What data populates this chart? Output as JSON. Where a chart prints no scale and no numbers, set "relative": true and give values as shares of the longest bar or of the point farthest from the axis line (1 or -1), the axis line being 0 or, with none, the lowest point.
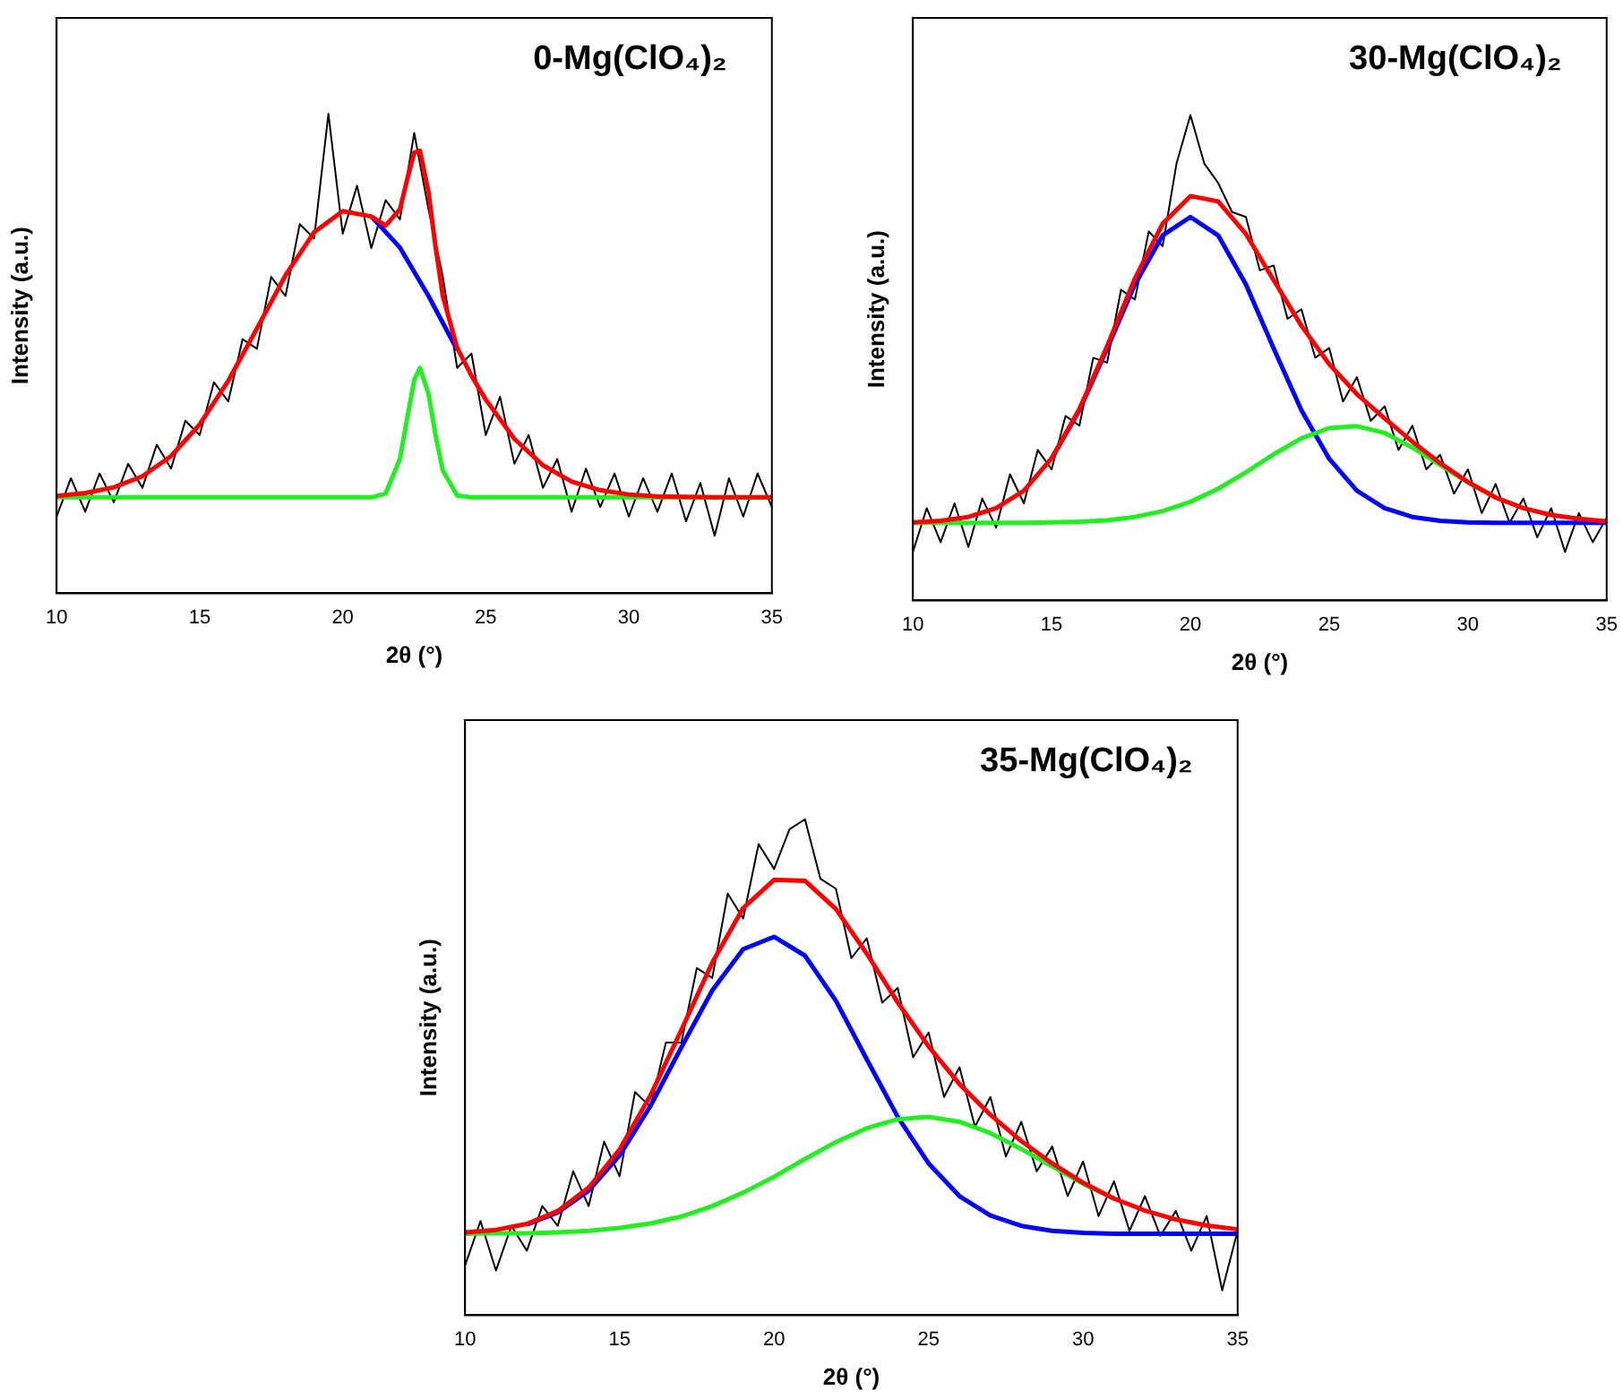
{
  "chart_data": [
    {
      "type": "line",
      "title": "0-Mg(ClO₄)₂",
      "xlabel": "2θ (°)",
      "ylabel": "Intensity (a.u.)",
      "relative": true,
      "xlim": [
        10,
        35
      ],
      "xticks": [
        10,
        15,
        20,
        25,
        30,
        35
      ],
      "x": [
        10,
        10.5,
        11,
        11.5,
        12,
        12.5,
        13,
        13.5,
        14,
        14.5,
        15,
        15.5,
        16,
        16.5,
        17,
        17.5,
        18,
        18.5,
        19,
        19.5,
        20,
        20.5,
        21,
        21.5,
        22,
        22.5,
        23,
        23.5,
        24,
        24.5,
        25,
        25.5,
        26,
        26.5,
        27,
        27.5,
        28,
        28.5,
        29,
        29.5,
        30,
        30.5,
        31,
        31.5,
        32,
        32.5,
        33,
        33.5,
        34,
        34.5,
        35
      ],
      "series": [
        {
          "color": "#000000",
          "values": [
            0.16,
            0.24,
            0.17,
            0.25,
            0.19,
            0.27,
            0.22,
            0.31,
            0.26,
            0.36,
            0.33,
            0.44,
            0.4,
            0.53,
            0.51,
            0.66,
            0.62,
            0.77,
            0.74,
            1.0,
            0.75,
            0.85,
            0.72,
            0.82,
            0.78,
            0.96,
            0.8,
            0.66,
            0.47,
            0.5,
            0.33,
            0.41,
            0.27,
            0.33,
            0.22,
            0.28,
            0.17,
            0.26,
            0.18,
            0.25,
            0.16,
            0.24,
            0.17,
            0.25,
            0.15,
            0.23,
            0.12,
            0.24,
            0.16,
            0.25,
            0.18
          ]
        },
        {
          "color": "#0000ff",
          "x": [
            21,
            22,
            23,
            24
          ],
          "values": [
            0.786,
            0.721,
            0.62,
            0.508
          ]
        },
        {
          "color": "#22ee22",
          "x": [
            10,
            15,
            20,
            21,
            21.5,
            22,
            22.25,
            22.5,
            22.7,
            23,
            23.25,
            23.5,
            24,
            24.5,
            30,
            35
          ],
          "values": [
            0.2,
            0.2,
            0.2,
            0.2,
            0.208,
            0.28,
            0.364,
            0.445,
            0.47,
            0.416,
            0.328,
            0.256,
            0.204,
            0.2,
            0.2,
            0.2
          ]
        },
        {
          "color": "#ff0000",
          "x": [
            10,
            11,
            12,
            13,
            14,
            15,
            16,
            17,
            18,
            19,
            20,
            21,
            21.5,
            22,
            22.25,
            22.5,
            22.7,
            23,
            23.25,
            23.5,
            24,
            24.5,
            25,
            26,
            27,
            28,
            29,
            30,
            31,
            32,
            33,
            34,
            35
          ],
          "values": [
            0.203,
            0.209,
            0.221,
            0.244,
            0.286,
            0.352,
            0.443,
            0.552,
            0.663,
            0.753,
            0.797,
            0.786,
            0.767,
            0.801,
            0.862,
            0.919,
            0.923,
            0.836,
            0.72,
            0.62,
            0.512,
            0.454,
            0.404,
            0.322,
            0.267,
            0.233,
            0.215,
            0.206,
            0.202,
            0.201,
            0.2,
            0.2,
            0.2
          ]
        }
      ]
    },
    {
      "type": "line",
      "title": "30-Mg(ClO₄)₂",
      "xlabel": "2θ (°)",
      "ylabel": "Intensity (a.u.)",
      "relative": true,
      "xlim": [
        10,
        35
      ],
      "xticks": [
        10,
        15,
        20,
        25,
        30,
        35
      ],
      "x": [
        10,
        10.5,
        11,
        11.5,
        12,
        12.5,
        13,
        13.5,
        14,
        14.5,
        15,
        15.5,
        16,
        16.5,
        17,
        17.5,
        18,
        18.5,
        19,
        19.5,
        20,
        20.5,
        21,
        21.5,
        22,
        22.5,
        23,
        23.5,
        24,
        24.5,
        25,
        25.5,
        26,
        26.5,
        27,
        27.5,
        28,
        28.5,
        29,
        29.5,
        30,
        30.5,
        31,
        31.5,
        32,
        32.5,
        33,
        33.5,
        34,
        34.5,
        35
      ],
      "series": [
        {
          "color": "#000000",
          "values": [
            0.1,
            0.19,
            0.12,
            0.2,
            0.11,
            0.21,
            0.15,
            0.26,
            0.2,
            0.31,
            0.27,
            0.38,
            0.36,
            0.5,
            0.49,
            0.64,
            0.62,
            0.76,
            0.73,
            0.9,
            1.0,
            0.9,
            0.86,
            0.8,
            0.79,
            0.68,
            0.69,
            0.58,
            0.6,
            0.5,
            0.52,
            0.41,
            0.46,
            0.37,
            0.4,
            0.31,
            0.36,
            0.27,
            0.3,
            0.22,
            0.27,
            0.18,
            0.24,
            0.16,
            0.21,
            0.13,
            0.19,
            0.1,
            0.18,
            0.12,
            0.17
          ]
        },
        {
          "color": "#0000ff",
          "x": [
            15,
            16,
            17,
            18,
            19,
            20,
            21,
            22,
            23,
            24,
            25,
            26,
            27,
            28,
            29,
            30,
            31,
            32,
            33,
            34,
            35
          ],
          "values": [
            0.292,
            0.392,
            0.519,
            0.651,
            0.752,
            0.79,
            0.752,
            0.651,
            0.519,
            0.392,
            0.292,
            0.226,
            0.19,
            0.172,
            0.164,
            0.161,
            0.16,
            0.16,
            0.16,
            0.16,
            0.16
          ]
        },
        {
          "color": "#22ee22",
          "x": [
            10,
            11,
            12,
            13,
            14,
            15,
            16,
            17,
            18,
            19,
            20,
            21,
            22,
            23,
            24,
            25,
            26,
            27,
            28,
            29,
            30,
            31,
            32
          ],
          "values": [
            0.16,
            0.16,
            0.16,
            0.16,
            0.16,
            0.161,
            0.162,
            0.165,
            0.172,
            0.184,
            0.203,
            0.23,
            0.264,
            0.301,
            0.334,
            0.355,
            0.359,
            0.345,
            0.315,
            0.279,
            0.243,
            0.212,
            0.19
          ]
        },
        {
          "color": "#ff0000",
          "x": [
            10,
            11,
            12,
            13,
            14,
            15,
            16,
            17,
            18,
            19,
            20,
            21,
            22,
            23,
            24,
            25,
            26,
            27,
            28,
            29,
            30,
            31,
            32,
            33,
            34,
            35
          ],
          "values": [
            0.161,
            0.164,
            0.172,
            0.19,
            0.226,
            0.293,
            0.394,
            0.524,
            0.663,
            0.776,
            0.833,
            0.822,
            0.755,
            0.66,
            0.566,
            0.487,
            0.425,
            0.375,
            0.327,
            0.283,
            0.244,
            0.212,
            0.19,
            0.176,
            0.168,
            0.163
          ]
        }
      ]
    },
    {
      "type": "line",
      "title": "35-Mg(ClO₄)₂",
      "xlabel": "2θ (°)",
      "ylabel": "Intensity (a.u.)",
      "relative": true,
      "xlim": [
        10,
        35
      ],
      "xticks": [
        10,
        15,
        20,
        25,
        30,
        35
      ],
      "x": [
        10,
        10.5,
        11,
        11.5,
        12,
        12.5,
        13,
        13.5,
        14,
        14.5,
        15,
        15.5,
        16,
        16.5,
        17,
        17.5,
        18,
        18.5,
        19,
        19.5,
        20,
        20.5,
        21,
        21.5,
        22,
        22.5,
        23,
        23.5,
        24,
        24.5,
        25,
        25.5,
        26,
        26.5,
        27,
        27.5,
        28,
        28.5,
        29,
        29.5,
        30,
        30.5,
        31,
        31.5,
        32,
        32.5,
        33,
        33.5,
        34,
        34.5,
        35
      ],
      "series": [
        {
          "color": "#000000",
          "values": [
            0.1,
            0.19,
            0.09,
            0.18,
            0.13,
            0.22,
            0.18,
            0.29,
            0.22,
            0.35,
            0.28,
            0.45,
            0.42,
            0.55,
            0.55,
            0.7,
            0.68,
            0.85,
            0.8,
            0.95,
            0.9,
            0.98,
            1.0,
            0.88,
            0.86,
            0.72,
            0.76,
            0.63,
            0.66,
            0.52,
            0.57,
            0.44,
            0.5,
            0.38,
            0.44,
            0.32,
            0.39,
            0.29,
            0.34,
            0.24,
            0.31,
            0.2,
            0.27,
            0.17,
            0.24,
            0.16,
            0.21,
            0.13,
            0.2,
            0.05,
            0.17
          ]
        },
        {
          "color": "#0000ff",
          "x": [
            12,
            13,
            14,
            15,
            16,
            17,
            18,
            19,
            20,
            21,
            22,
            23,
            24,
            25,
            26,
            27,
            28,
            29,
            30,
            31,
            32,
            33,
            34,
            35
          ],
          "values": [
            0.183,
            0.207,
            0.251,
            0.322,
            0.422,
            0.54,
            0.655,
            0.738,
            0.763,
            0.725,
            0.634,
            0.516,
            0.4,
            0.306,
            0.24,
            0.201,
            0.18,
            0.17,
            0.166,
            0.164,
            0.164,
            0.164,
            0.164,
            0.164
          ]
        },
        {
          "color": "#22ee22",
          "x": [
            10,
            11,
            12,
            13,
            14,
            15,
            16,
            17,
            18,
            19,
            20,
            21,
            22,
            23,
            24,
            25,
            26,
            27,
            28,
            29,
            30,
            31
          ],
          "values": [
            0.164,
            0.165,
            0.165,
            0.167,
            0.17,
            0.176,
            0.185,
            0.199,
            0.22,
            0.247,
            0.279,
            0.315,
            0.349,
            0.377,
            0.395,
            0.4,
            0.39,
            0.367,
            0.335,
            0.3,
            0.265,
            0.235
          ]
        },
        {
          "color": "#ff0000",
          "x": [
            10,
            11,
            12,
            13,
            14,
            15,
            16,
            17,
            18,
            19,
            20,
            21,
            22,
            23,
            24,
            25,
            26,
            27,
            28,
            29,
            30,
            31,
            32,
            33,
            34,
            35
          ],
          "values": [
            0.167,
            0.172,
            0.184,
            0.21,
            0.257,
            0.334,
            0.443,
            0.575,
            0.711,
            0.821,
            0.878,
            0.876,
            0.819,
            0.729,
            0.631,
            0.542,
            0.466,
            0.404,
            0.351,
            0.306,
            0.267,
            0.235,
            0.211,
            0.193,
            0.181,
            0.173
          ]
        }
      ]
    }
  ]
}
